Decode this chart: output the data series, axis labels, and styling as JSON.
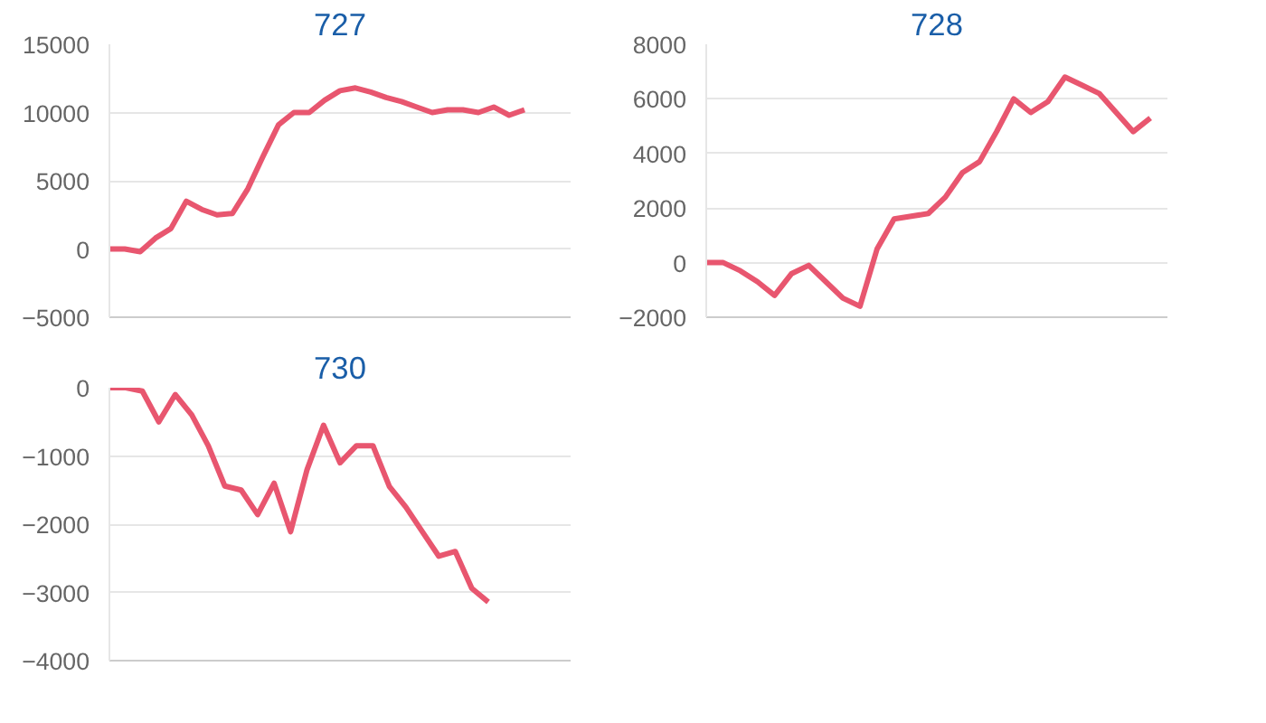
{
  "chart_data": [
    {
      "type": "line",
      "title": "727",
      "categories": [
        null,
        null,
        null,
        null,
        null,
        null,
        null,
        null,
        null,
        null,
        null,
        null,
        null,
        null,
        null,
        null,
        null,
        null,
        null,
        null,
        null,
        null,
        null,
        null,
        null,
        null,
        null,
        null,
        null,
        null,
        null
      ],
      "color": "#e8566f",
      "values": [
        0,
        0,
        -200,
        800,
        1500,
        3500,
        2900,
        2500,
        2600,
        4400,
        6800,
        9100,
        10000,
        10000,
        10900,
        11600,
        11800,
        11500,
        11100,
        10800,
        10400,
        10000,
        10200,
        10200,
        10000,
        10400,
        9800,
        10200,
        null,
        null,
        null
      ],
      "ylim": [
        -5000,
        15000
      ],
      "yticks": [
        -5000,
        0,
        5000,
        10000,
        15000
      ],
      "grid": "y",
      "tick_labels": "y"
    },
    {
      "type": "line",
      "title": "728",
      "categories": [
        null,
        null,
        null,
        null,
        null,
        null,
        null,
        null,
        null,
        null,
        null,
        null,
        null,
        null,
        null,
        null,
        null,
        null,
        null,
        null,
        null,
        null,
        null,
        null,
        null,
        null,
        null,
        null
      ],
      "color": "#e8566f",
      "values": [
        0,
        0,
        -300,
        -700,
        -1200,
        -400,
        -100,
        -700,
        -1300,
        -1600,
        500,
        1600,
        1700,
        1800,
        2400,
        3300,
        3700,
        4800,
        6000,
        5500,
        5900,
        6800,
        6500,
        6200,
        5500,
        4800,
        5300,
        null
      ],
      "ylim": [
        -2000,
        8000
      ],
      "yticks": [
        -2000,
        0,
        2000,
        4000,
        6000,
        8000
      ],
      "grid": "y",
      "tick_labels": "y"
    },
    {
      "type": "line",
      "title": "730",
      "categories": [
        null,
        null,
        null,
        null,
        null,
        null,
        null,
        null,
        null,
        null,
        null,
        null,
        null,
        null,
        null,
        null,
        null,
        null,
        null,
        null,
        null,
        null,
        null,
        null,
        null,
        null,
        null,
        null,
        null
      ],
      "color": "#e8566f",
      "values": [
        0,
        0,
        -50,
        -500,
        -100,
        -400,
        -850,
        -1440,
        -1500,
        -1860,
        -1400,
        -2110,
        -1200,
        -550,
        -1100,
        -850,
        -850,
        -1450,
        -1750,
        -2110,
        -2470,
        -2400,
        -2940,
        -3140,
        null,
        null,
        null,
        null,
        null
      ],
      "ylim": [
        -4000,
        0
      ],
      "yticks": [
        -4000,
        -3000,
        -2000,
        -1000,
        0
      ],
      "grid": "y",
      "tick_labels": "y"
    }
  ]
}
